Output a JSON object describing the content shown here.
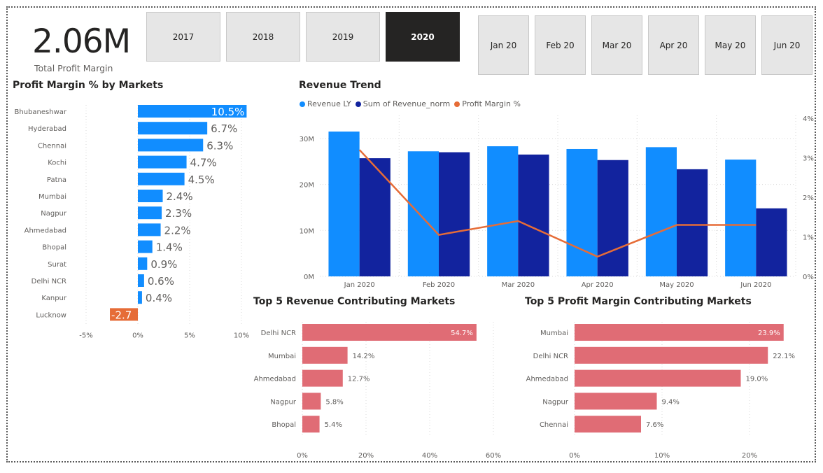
{
  "kpi": {
    "value": "2.06M",
    "label": "Total Profit Margin"
  },
  "year_slicer": [
    {
      "label": "2017",
      "selected": false
    },
    {
      "label": "2018",
      "selected": false
    },
    {
      "label": "2019",
      "selected": false
    },
    {
      "label": "2020",
      "selected": true
    }
  ],
  "month_slicer": [
    {
      "label": "Jan 20"
    },
    {
      "label": "Feb 20"
    },
    {
      "label": "Mar 20"
    },
    {
      "label": "Apr 20"
    },
    {
      "label": "May 20"
    },
    {
      "label": "Jun 20"
    }
  ],
  "colors": {
    "blue": "#118dff",
    "navy": "#12239e",
    "orange": "#e66c37",
    "pink": "#e06c75",
    "grid": "#d9d9d9",
    "negative": "#e66c37"
  },
  "chart_data": [
    {
      "id": "profit_margin_by_markets",
      "type": "bar",
      "orientation": "horizontal",
      "title": "Profit Margin % by Markets",
      "categories": [
        "Bhubaneshwar",
        "Hyderabad",
        "Chennai",
        "Kochi",
        "Patna",
        "Mumbai",
        "Nagpur",
        "Ahmedabad",
        "Bhopal",
        "Surat",
        "Delhi NCR",
        "Kanpur",
        "Lucknow"
      ],
      "values": [
        10.5,
        6.7,
        6.3,
        4.7,
        4.5,
        2.4,
        2.3,
        2.2,
        1.4,
        0.9,
        0.6,
        0.4,
        -2.7
      ],
      "data_labels": [
        "10.5%",
        "6.7%",
        "6.3%",
        "4.7%",
        "4.5%",
        "2.4%",
        "2.3%",
        "2.2%",
        "1.4%",
        "0.9%",
        "0.6%",
        "0.4%",
        "-2.7"
      ],
      "xlim": [
        -5,
        10
      ],
      "xticks": [
        -5,
        0,
        5,
        10
      ],
      "xtick_labels": [
        "-5%",
        "0%",
        "5%",
        "10%"
      ]
    },
    {
      "id": "revenue_trend",
      "type": "bar",
      "title": "Revenue Trend",
      "categories": [
        "Jan 2020",
        "Feb 2020",
        "Mar 2020",
        "Apr 2020",
        "May 2020",
        "Jun 2020"
      ],
      "series": [
        {
          "name": "Revenue LY",
          "axis": "left",
          "values": [
            31.5,
            27.2,
            28.3,
            27.7,
            28.1,
            25.4
          ]
        },
        {
          "name": "Sum of Revenue_norm",
          "axis": "left",
          "values": [
            25.7,
            27.0,
            26.5,
            25.3,
            23.3,
            14.8
          ]
        },
        {
          "name": "Profit Margin %",
          "axis": "right",
          "type": "line",
          "values": [
            3.2,
            1.05,
            1.4,
            0.5,
            1.3,
            1.3
          ]
        }
      ],
      "ylim_left": [
        0,
        35
      ],
      "yticks_left": [
        0,
        10,
        20,
        30
      ],
      "ytick_labels_left": [
        "0M",
        "10M",
        "20M",
        "30M"
      ],
      "ylim_right": [
        0,
        4
      ],
      "yticks_right": [
        0,
        1,
        2,
        3,
        4
      ],
      "ytick_labels_right": [
        "0%",
        "1%",
        "2%",
        "3%",
        "4%"
      ],
      "legend": "top-left"
    },
    {
      "id": "top5_revenue",
      "type": "bar",
      "orientation": "horizontal",
      "title": "Top 5 Revenue Contributing Markets",
      "categories": [
        "Delhi NCR",
        "Mumbai",
        "Ahmedabad",
        "Nagpur",
        "Bhopal"
      ],
      "values": [
        54.7,
        14.2,
        12.7,
        5.8,
        5.4
      ],
      "data_labels": [
        "54.7%",
        "14.2%",
        "12.7%",
        "5.8%",
        "5.4%"
      ],
      "xlim": [
        0,
        60
      ],
      "xticks": [
        0,
        20,
        40,
        60
      ],
      "xtick_labels": [
        "0%",
        "20%",
        "40%",
        "60%"
      ]
    },
    {
      "id": "top5_profit",
      "type": "bar",
      "orientation": "horizontal",
      "title": "Top 5 Profit Margin Contributing Markets",
      "categories": [
        "Mumbai",
        "Delhi NCR",
        "Ahmedabad",
        "Nagpur",
        "Chennai"
      ],
      "values": [
        23.9,
        22.1,
        19.0,
        9.4,
        7.6
      ],
      "data_labels": [
        "23.9%",
        "22.1%",
        "19.0%",
        "9.4%",
        "7.6%"
      ],
      "xlim": [
        0,
        20
      ],
      "xticks": [
        0,
        10,
        20
      ],
      "xtick_labels": [
        "0%",
        "10%",
        "20%"
      ]
    }
  ]
}
